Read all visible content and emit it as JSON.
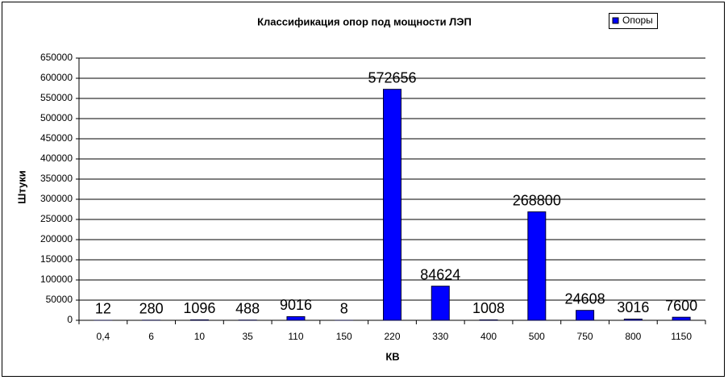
{
  "chart_data": {
    "type": "bar",
    "title": "Классификация опор под мощности ЛЭП",
    "x_label": "КВ",
    "y_label": "Штуки",
    "categories": [
      "0,4",
      "6",
      "10",
      "35",
      "110",
      "150",
      "220",
      "330",
      "400",
      "500",
      "750",
      "800",
      "1150"
    ],
    "series": [
      {
        "name": "Опоры",
        "color": "#0000ff",
        "values": [
          12,
          280,
          1096,
          488,
          9016,
          8,
          572656,
          84624,
          1008,
          268800,
          24608,
          3016,
          7600
        ]
      }
    ],
    "ylim": [
      0,
      650000
    ],
    "yticks": [
      0,
      50000,
      100000,
      150000,
      200000,
      250000,
      300000,
      350000,
      400000,
      450000,
      500000,
      550000,
      600000,
      650000
    ],
    "grid": true,
    "legend": "top-right"
  }
}
